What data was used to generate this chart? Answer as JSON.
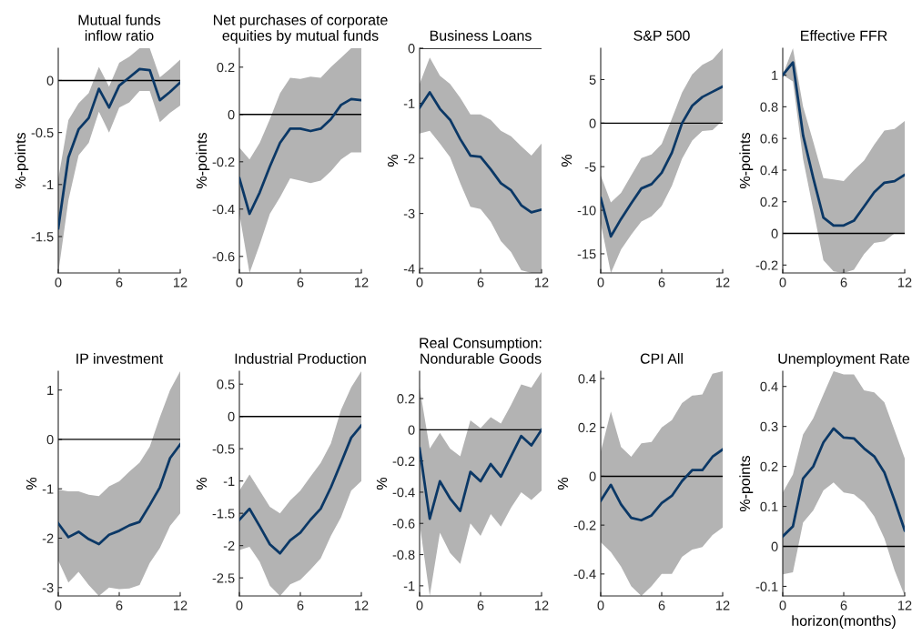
{
  "chart_data": [
    {
      "type": "line",
      "title": "Mutual funds\ninflow ratio",
      "ylabel": "%-points",
      "x": [
        0,
        1,
        2,
        3,
        4,
        5,
        6,
        7,
        8,
        9,
        10,
        11,
        12
      ],
      "xlim": [
        0,
        12
      ],
      "xticks": [
        0,
        6,
        12
      ],
      "ylim": [
        -1.85,
        0.31
      ],
      "yticks": [
        -1.5,
        -1,
        -0.5,
        0
      ],
      "grid": false,
      "legend": false,
      "ref_lines": [
        {
          "axis": "y",
          "value": 0,
          "color": "#000000"
        }
      ],
      "series": [
        {
          "color": "#0b3866",
          "values": [
            -1.42,
            -0.74,
            -0.47,
            -0.36,
            -0.08,
            -0.26,
            -0.05,
            0.03,
            0.11,
            0.1,
            -0.19,
            -0.11,
            -0.02
          ],
          "lower": [
            -1.85,
            -1.15,
            -0.72,
            -0.6,
            -0.3,
            -0.5,
            -0.26,
            -0.21,
            -0.1,
            -0.1,
            -0.4,
            -0.31,
            -0.24
          ],
          "upper": [
            -0.95,
            -0.38,
            -0.22,
            -0.12,
            0.13,
            -0.06,
            0.17,
            0.23,
            0.31,
            0.31,
            0.03,
            0.11,
            0.2
          ]
        }
      ]
    },
    {
      "type": "line",
      "title": "Net purchases of corporate\nequities by mutual funds",
      "ylabel": "%-points",
      "x": [
        0,
        1,
        2,
        3,
        4,
        5,
        6,
        7,
        8,
        9,
        10,
        11,
        12
      ],
      "xlim": [
        0,
        12
      ],
      "xticks": [
        0,
        6,
        12
      ],
      "ylim": [
        -0.67,
        0.28
      ],
      "yticks": [
        -0.6,
        -0.4,
        -0.2,
        0,
        0.2
      ],
      "grid": false,
      "legend": false,
      "ref_lines": [
        {
          "axis": "y",
          "value": 0,
          "color": "#000000"
        }
      ],
      "series": [
        {
          "color": "#0b3866",
          "values": [
            -0.27,
            -0.42,
            -0.33,
            -0.22,
            -0.12,
            -0.06,
            -0.06,
            -0.07,
            -0.06,
            -0.02,
            0.04,
            0.065,
            0.06
          ],
          "lower": [
            -0.42,
            -0.67,
            -0.55,
            -0.42,
            -0.35,
            -0.27,
            -0.28,
            -0.29,
            -0.28,
            -0.24,
            -0.19,
            -0.16,
            -0.16
          ],
          "upper": [
            -0.14,
            -0.19,
            -0.12,
            -0.02,
            0.09,
            0.155,
            0.15,
            0.16,
            0.155,
            0.2,
            0.24,
            0.28,
            0.28
          ]
        }
      ]
    },
    {
      "type": "line",
      "title": "Business Loans",
      "ylabel": "%",
      "x": [
        0,
        1,
        2,
        3,
        4,
        5,
        6,
        7,
        8,
        9,
        10,
        11,
        12
      ],
      "xlim": [
        0,
        12
      ],
      "xticks": [
        0,
        6,
        12
      ],
      "ylim": [
        -4.08,
        0
      ],
      "yticks": [
        -4,
        -3,
        -2,
        -1,
        0
      ],
      "grid": false,
      "legend": false,
      "ref_lines": [
        {
          "axis": "y",
          "value": 0,
          "color": "#000000"
        }
      ],
      "series": [
        {
          "color": "#0b3866",
          "values": [
            -1.08,
            -0.8,
            -1.1,
            -1.3,
            -1.65,
            -1.95,
            -1.97,
            -2.2,
            -2.45,
            -2.58,
            -2.85,
            -2.98,
            -2.93
          ],
          "lower": [
            -1.55,
            -1.5,
            -1.73,
            -1.98,
            -2.45,
            -2.88,
            -2.92,
            -3.15,
            -3.5,
            -3.7,
            -4.03,
            -4.08,
            -4.08
          ],
          "upper": [
            -0.65,
            -0.17,
            -0.5,
            -0.65,
            -0.9,
            -1.2,
            -1.2,
            -1.3,
            -1.5,
            -1.6,
            -1.78,
            -1.95,
            -1.73
          ]
        }
      ]
    },
    {
      "type": "line",
      "title": "S&P 500",
      "ylabel": "%",
      "x": [
        0,
        1,
        2,
        3,
        4,
        5,
        6,
        7,
        8,
        9,
        10,
        11,
        12
      ],
      "xlim": [
        0,
        12
      ],
      "xticks": [
        0,
        6,
        12
      ],
      "ylim": [
        -17.2,
        8.6
      ],
      "yticks": [
        -15,
        -10,
        -5,
        0,
        5
      ],
      "grid": false,
      "legend": false,
      "ref_lines": [
        {
          "axis": "y",
          "value": 0,
          "color": "#000000"
        }
      ],
      "series": [
        {
          "color": "#0b3866",
          "values": [
            -8.6,
            -13,
            -11,
            -9.2,
            -7.5,
            -7,
            -5.7,
            -3.4,
            0,
            2,
            3,
            3.6,
            4.2
          ],
          "lower": [
            -11.5,
            -17.2,
            -14.5,
            -12.8,
            -11.3,
            -10.7,
            -9.5,
            -7.2,
            -4.1,
            -2,
            -0.9,
            -0.8,
            0.3
          ],
          "upper": [
            -6,
            -9.1,
            -8,
            -6,
            -4,
            -3.6,
            -2.4,
            0.5,
            3.5,
            5.6,
            6.7,
            7.3,
            8.6
          ]
        }
      ]
    },
    {
      "type": "line",
      "title": "Effective FFR",
      "ylabel": "%-points",
      "x": [
        0,
        1,
        2,
        3,
        4,
        5,
        6,
        7,
        8,
        9,
        10,
        11,
        12
      ],
      "xlim": [
        0,
        12
      ],
      "xticks": [
        0,
        6,
        12
      ],
      "ylim": [
        -0.25,
        1.17
      ],
      "yticks": [
        -0.2,
        0,
        0.2,
        0.4,
        0.6,
        0.8,
        1
      ],
      "grid": false,
      "legend": false,
      "ref_lines": [
        {
          "axis": "y",
          "value": 0,
          "color": "#000000"
        }
      ],
      "series": [
        {
          "color": "#0b3866",
          "values": [
            1.0,
            1.08,
            0.62,
            0.35,
            0.1,
            0.05,
            0.05,
            0.08,
            0.17,
            0.26,
            0.32,
            0.33,
            0.37
          ],
          "lower": [
            1.0,
            0.96,
            0.47,
            0.15,
            -0.17,
            -0.24,
            -0.25,
            -0.23,
            -0.13,
            -0.06,
            -0.05,
            0,
            0
          ],
          "upper": [
            1.0,
            1.17,
            0.8,
            0.58,
            0.35,
            0.34,
            0.33,
            0.4,
            0.46,
            0.56,
            0.65,
            0.66,
            0.71
          ]
        }
      ]
    },
    {
      "type": "line",
      "title": "IP investment",
      "ylabel": "%",
      "x": [
        0,
        1,
        2,
        3,
        4,
        5,
        6,
        7,
        8,
        9,
        10,
        11,
        12
      ],
      "xlim": [
        0,
        12
      ],
      "xticks": [
        0,
        6,
        12
      ],
      "ylim": [
        -3.17,
        1.38
      ],
      "yticks": [
        -3,
        -2,
        -1,
        0,
        1
      ],
      "grid": false,
      "legend": false,
      "ref_lines": [
        {
          "axis": "y",
          "value": 0,
          "color": "#000000"
        }
      ],
      "series": [
        {
          "color": "#0b3866",
          "values": [
            -1.7,
            -1.98,
            -1.87,
            -2.02,
            -2.12,
            -1.93,
            -1.85,
            -1.74,
            -1.67,
            -1.33,
            -0.97,
            -0.38,
            -0.1
          ],
          "lower": [
            -2.45,
            -2.9,
            -2.68,
            -2.95,
            -3.17,
            -3.0,
            -3.03,
            -3.02,
            -2.95,
            -2.5,
            -2.2,
            -1.75,
            -1.5
          ],
          "upper": [
            -1.02,
            -1.05,
            -1.05,
            -1.12,
            -1.15,
            -0.95,
            -0.85,
            -0.65,
            -0.47,
            -0.15,
            0.45,
            1.0,
            1.38
          ]
        }
      ]
    },
    {
      "type": "line",
      "title": "Industrial Production",
      "ylabel": "%",
      "x": [
        0,
        1,
        2,
        3,
        4,
        5,
        6,
        7,
        8,
        9,
        10,
        11,
        12
      ],
      "xlim": [
        0,
        12
      ],
      "xticks": [
        0,
        6,
        12
      ],
      "ylim": [
        -2.78,
        0.7
      ],
      "yticks": [
        -2.5,
        -2,
        -1.5,
        -1,
        -0.5,
        0,
        0.5
      ],
      "grid": false,
      "legend": false,
      "ref_lines": [
        {
          "axis": "y",
          "value": 0,
          "color": "#000000"
        }
      ],
      "series": [
        {
          "color": "#0b3866",
          "values": [
            -1.6,
            -1.43,
            -1.7,
            -1.98,
            -2.12,
            -1.92,
            -1.8,
            -1.6,
            -1.43,
            -1.1,
            -0.72,
            -0.33,
            -0.14
          ],
          "lower": [
            -2.07,
            -2.02,
            -2.25,
            -2.62,
            -2.78,
            -2.6,
            -2.53,
            -2.37,
            -2.2,
            -1.85,
            -1.56,
            -1.15,
            -1.0
          ],
          "upper": [
            -1.15,
            -0.9,
            -1.15,
            -1.4,
            -1.5,
            -1.3,
            -1.15,
            -0.93,
            -0.72,
            -0.42,
            0.1,
            0.45,
            0.7
          ]
        }
      ]
    },
    {
      "type": "line",
      "title": "Real Consumption:\nNondurable Goods",
      "ylabel": "%",
      "x": [
        0,
        1,
        2,
        3,
        4,
        5,
        6,
        7,
        8,
        9,
        10,
        11,
        12
      ],
      "xlim": [
        0,
        12
      ],
      "xticks": [
        0,
        6,
        12
      ],
      "ylim": [
        -1.065,
        0.375
      ],
      "yticks": [
        -1,
        -0.8,
        -0.6,
        -0.4,
        -0.2,
        0,
        0.2
      ],
      "grid": false,
      "legend": false,
      "ref_lines": [
        {
          "axis": "y",
          "value": 0,
          "color": "#000000"
        }
      ],
      "series": [
        {
          "color": "#0b3866",
          "values": [
            -0.12,
            -0.57,
            -0.33,
            -0.44,
            -0.52,
            -0.27,
            -0.33,
            -0.22,
            -0.3,
            -0.17,
            -0.04,
            -0.1,
            0.0
          ],
          "lower": [
            -0.6,
            -1.065,
            -0.66,
            -0.79,
            -0.86,
            -0.6,
            -0.68,
            -0.54,
            -0.62,
            -0.5,
            -0.4,
            -0.45,
            -0.39
          ],
          "upper": [
            0.27,
            -0.12,
            -0.02,
            -0.12,
            -0.17,
            0.06,
            0.01,
            0.08,
            0.04,
            0.16,
            0.29,
            0.27,
            0.37
          ]
        }
      ]
    },
    {
      "type": "line",
      "title": "CPI All",
      "ylabel": "%",
      "x": [
        0,
        1,
        2,
        3,
        4,
        5,
        6,
        7,
        8,
        9,
        10,
        11,
        12
      ],
      "xlim": [
        0,
        12
      ],
      "xticks": [
        0,
        6,
        12
      ],
      "ylim": [
        -0.49,
        0.43
      ],
      "yticks": [
        -0.4,
        -0.2,
        0,
        0.2,
        0.4
      ],
      "grid": false,
      "legend": false,
      "ref_lines": [
        {
          "axis": "y",
          "value": 0,
          "color": "#000000"
        }
      ],
      "series": [
        {
          "color": "#0b3866",
          "values": [
            -0.1,
            -0.035,
            -0.115,
            -0.17,
            -0.18,
            -0.16,
            -0.11,
            -0.08,
            -0.02,
            0.025,
            0.025,
            0.08,
            0.11
          ],
          "lower": [
            -0.27,
            -0.31,
            -0.37,
            -0.45,
            -0.49,
            -0.45,
            -0.4,
            -0.4,
            -0.33,
            -0.3,
            -0.29,
            -0.24,
            -0.21
          ],
          "upper": [
            0.1,
            0.265,
            0.12,
            0.08,
            0.135,
            0.14,
            0.2,
            0.23,
            0.3,
            0.33,
            0.335,
            0.42,
            0.43
          ]
        }
      ]
    },
    {
      "type": "line",
      "title": "Unemployment Rate",
      "ylabel": "%-points",
      "xlabel": "horizon(months)",
      "x": [
        0,
        1,
        2,
        3,
        4,
        5,
        6,
        7,
        8,
        9,
        10,
        11,
        12
      ],
      "xlim": [
        0,
        12
      ],
      "xticks": [
        0,
        6,
        12
      ],
      "ylim": [
        -0.124,
        0.438
      ],
      "yticks": [
        -0.1,
        0,
        0.1,
        0.2,
        0.3,
        0.4
      ],
      "grid": false,
      "legend": false,
      "ref_lines": [
        {
          "axis": "y",
          "value": 0,
          "color": "#000000"
        }
      ],
      "series": [
        {
          "color": "#0b3866",
          "values": [
            0.025,
            0.05,
            0.17,
            0.2,
            0.26,
            0.295,
            0.272,
            0.27,
            0.245,
            0.225,
            0.185,
            0.115,
            0.04
          ],
          "lower": [
            -0.07,
            -0.065,
            0.06,
            0.09,
            0.14,
            0.16,
            0.135,
            0.13,
            0.11,
            0.075,
            0.02,
            -0.06,
            -0.124
          ],
          "upper": [
            0.135,
            0.18,
            0.28,
            0.32,
            0.38,
            0.438,
            0.43,
            0.43,
            0.39,
            0.385,
            0.36,
            0.29,
            0.22
          ]
        }
      ]
    }
  ]
}
